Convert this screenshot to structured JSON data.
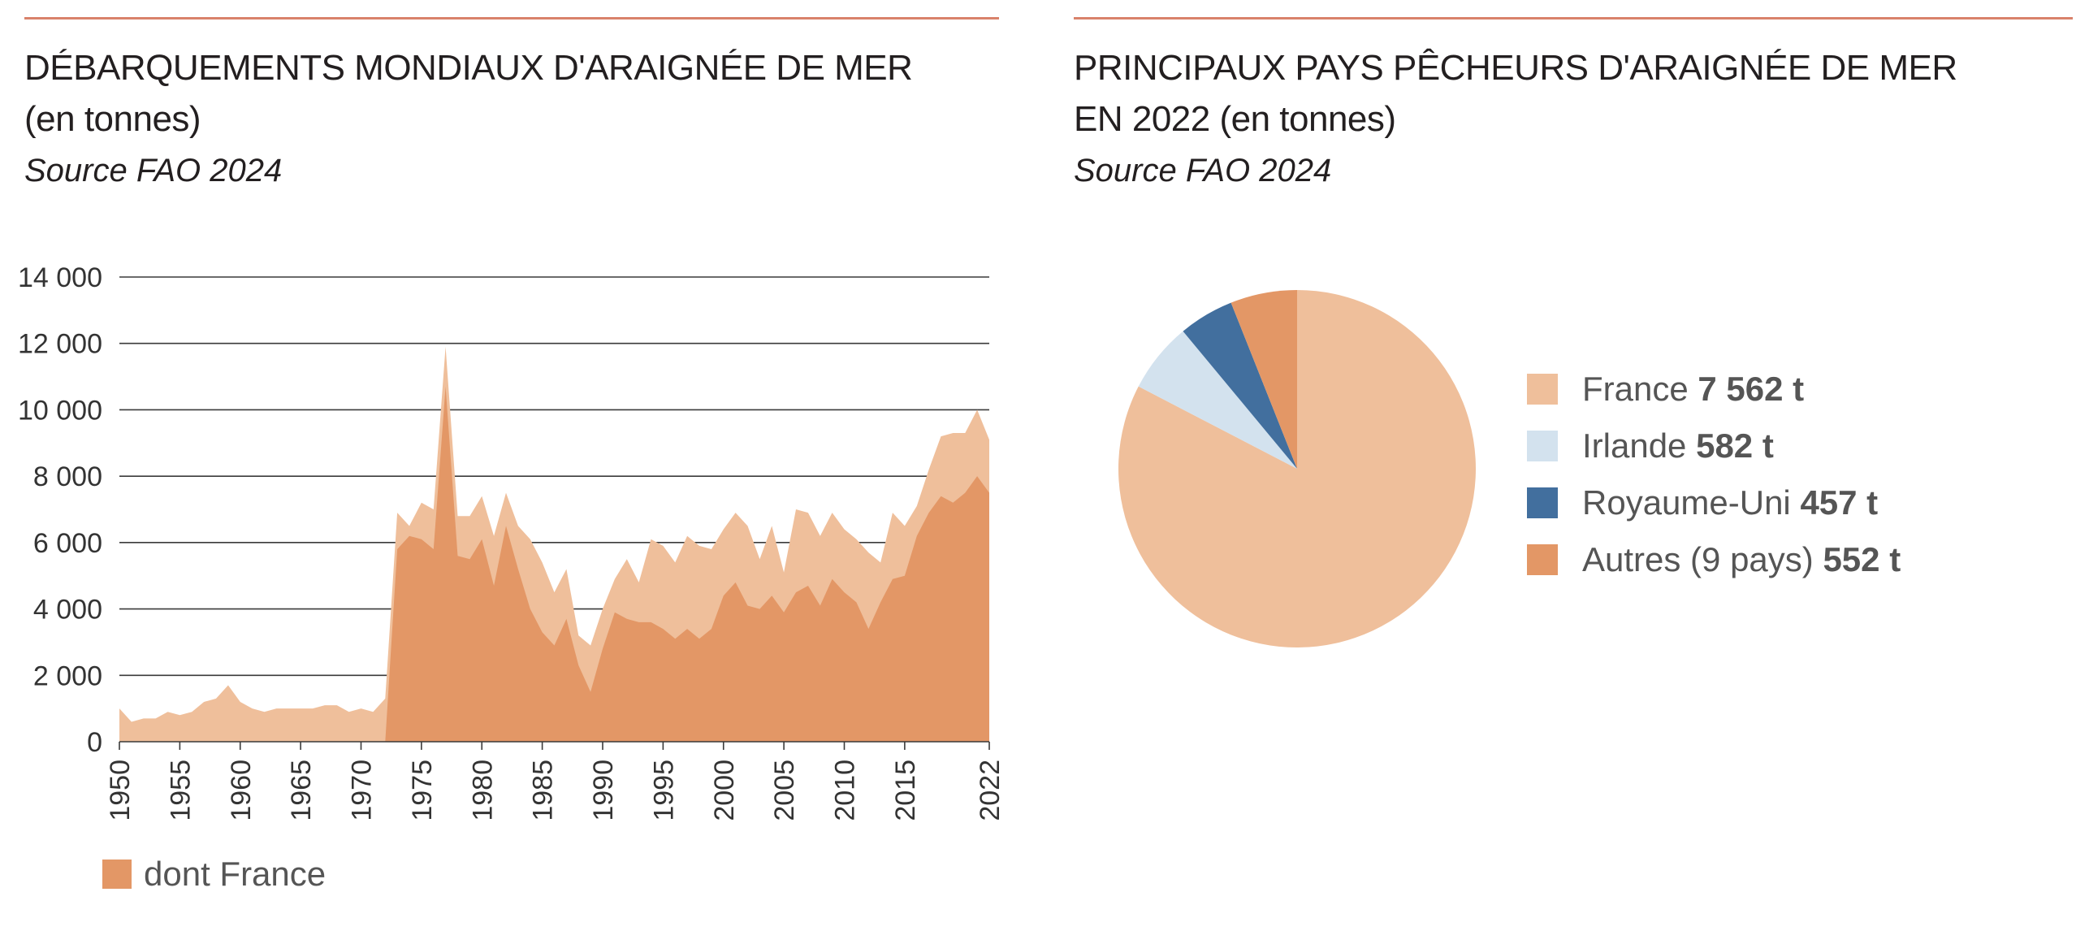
{
  "colors": {
    "world": "#efbf9b",
    "france": "#e39766",
    "rule": "#d9826b"
  },
  "left": {
    "title_line1": "DÉBARQUEMENTS MONDIAUX D'ARAIGNÉE DE MER",
    "title_line2": "(en tonnes)",
    "source": "Source FAO 2024",
    "legend_label": "dont France"
  },
  "right": {
    "title_line1": "PRINCIPAUX PAYS PÊCHEURS D'ARAIGNÉE DE MER",
    "title_line2": "EN 2022 (en tonnes)",
    "source": "Source FAO 2024"
  },
  "chart_data": [
    {
      "type": "area",
      "x_tick_labels": [
        "1950",
        "1955",
        "1960",
        "1965",
        "1970",
        "1975",
        "1980",
        "1985",
        "1990",
        "1995",
        "2000",
        "2005",
        "2010",
        "2015",
        "2022"
      ],
      "y_tick_labels": [
        "0",
        "2 000",
        "4 000",
        "6 000",
        "8 000",
        "10 000",
        "12 000",
        "14 000"
      ],
      "ylim": [
        0,
        14000
      ],
      "xlim": [
        1950,
        2022
      ],
      "x": [
        1950,
        1951,
        1952,
        1953,
        1954,
        1955,
        1956,
        1957,
        1958,
        1959,
        1960,
        1961,
        1962,
        1963,
        1964,
        1965,
        1966,
        1967,
        1968,
        1969,
        1970,
        1971,
        1972,
        1973,
        1974,
        1975,
        1976,
        1977,
        1978,
        1979,
        1980,
        1981,
        1982,
        1983,
        1984,
        1985,
        1986,
        1987,
        1988,
        1989,
        1990,
        1991,
        1992,
        1993,
        1994,
        1995,
        1996,
        1997,
        1998,
        1999,
        2000,
        2001,
        2002,
        2003,
        2004,
        2005,
        2006,
        2007,
        2008,
        2009,
        2010,
        2011,
        2012,
        2013,
        2014,
        2015,
        2016,
        2017,
        2018,
        2019,
        2020,
        2021,
        2022
      ],
      "series": [
        {
          "values": [
            1000,
            600,
            700,
            700,
            900,
            800,
            900,
            1200,
            1300,
            1700,
            1200,
            1000,
            900,
            1000,
            1000,
            1000,
            1000,
            1100,
            1100,
            900,
            1000,
            900,
            1300,
            6900,
            6500,
            7200,
            7000,
            11900,
            6800,
            6800,
            7400,
            6200,
            7500,
            6500,
            6100,
            5400,
            4500,
            5200,
            3200,
            2900,
            4000,
            4900,
            5500,
            4800,
            6100,
            5900,
            5400,
            6200,
            5900,
            5800,
            6400,
            6900,
            6500,
            5500,
            6500,
            5100,
            7000,
            6900,
            6200,
            6900,
            6400,
            6100,
            5700,
            5400,
            6900,
            6500,
            7100,
            8200,
            9200,
            9300,
            9300,
            10000,
            9100
          ]
        },
        {
          "name": "dont France",
          "values": [
            0,
            0,
            0,
            0,
            0,
            0,
            0,
            0,
            0,
            0,
            0,
            0,
            0,
            0,
            0,
            0,
            0,
            0,
            0,
            0,
            0,
            0,
            0,
            5800,
            6200,
            6100,
            5800,
            10700,
            5600,
            5500,
            6100,
            4700,
            6500,
            5200,
            4000,
            3300,
            2900,
            3700,
            2300,
            1500,
            2800,
            3900,
            3700,
            3600,
            3600,
            3400,
            3100,
            3400,
            3100,
            3400,
            4400,
            4800,
            4100,
            4000,
            4400,
            3900,
            4500,
            4700,
            4100,
            4900,
            4500,
            4200,
            3400,
            4200,
            4900,
            5000,
            6200,
            6900,
            7400,
            7200,
            7500,
            8000,
            7500
          ]
        }
      ]
    },
    {
      "type": "pie",
      "slices": [
        {
          "label": "France",
          "value": 7562,
          "value_label": "7 562 t",
          "color": "#efbf9b"
        },
        {
          "label": "Irlande",
          "value": 582,
          "value_label": "582 t",
          "color": "#d3e2ee"
        },
        {
          "label": "Royaume-Uni",
          "value": 457,
          "value_label": "457 t",
          "color": "#426f9e"
        },
        {
          "label": "Autres (9 pays)",
          "value": 552,
          "value_label": "552 t",
          "color": "#e39766"
        }
      ]
    }
  ]
}
